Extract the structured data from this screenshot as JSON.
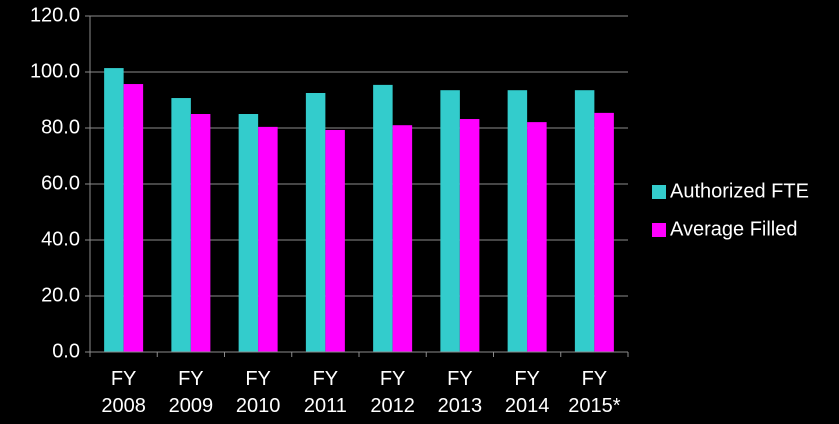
{
  "chart_data": {
    "type": "bar",
    "categories": [
      "FY 2008",
      "FY 2009",
      "FY 2010",
      "FY 2011",
      "FY 2012",
      "FY 2013",
      "FY 2014",
      "FY 2015*"
    ],
    "series": [
      {
        "name": "Authorized FTE",
        "color": "#33cccc",
        "values": [
          101.4,
          90.7,
          85.0,
          92.5,
          95.4,
          93.5,
          93.5,
          93.5
        ]
      },
      {
        "name": "Average Filled",
        "color": "#ff00ff",
        "values": [
          95.7,
          85.0,
          80.4,
          79.3,
          81.0,
          83.2,
          82.1,
          85.4
        ]
      }
    ],
    "ylim": [
      0,
      120
    ],
    "yticks": [
      {
        "value": 0,
        "label": "0.0"
      },
      {
        "value": 20,
        "label": "20.0"
      },
      {
        "value": 40,
        "label": "40.0"
      },
      {
        "value": 60,
        "label": "60.0"
      },
      {
        "value": 80,
        "label": "80.0"
      },
      {
        "value": 100,
        "label": "100.0"
      },
      {
        "value": 120,
        "label": "120.0"
      }
    ],
    "grid": true,
    "legend": "right"
  }
}
